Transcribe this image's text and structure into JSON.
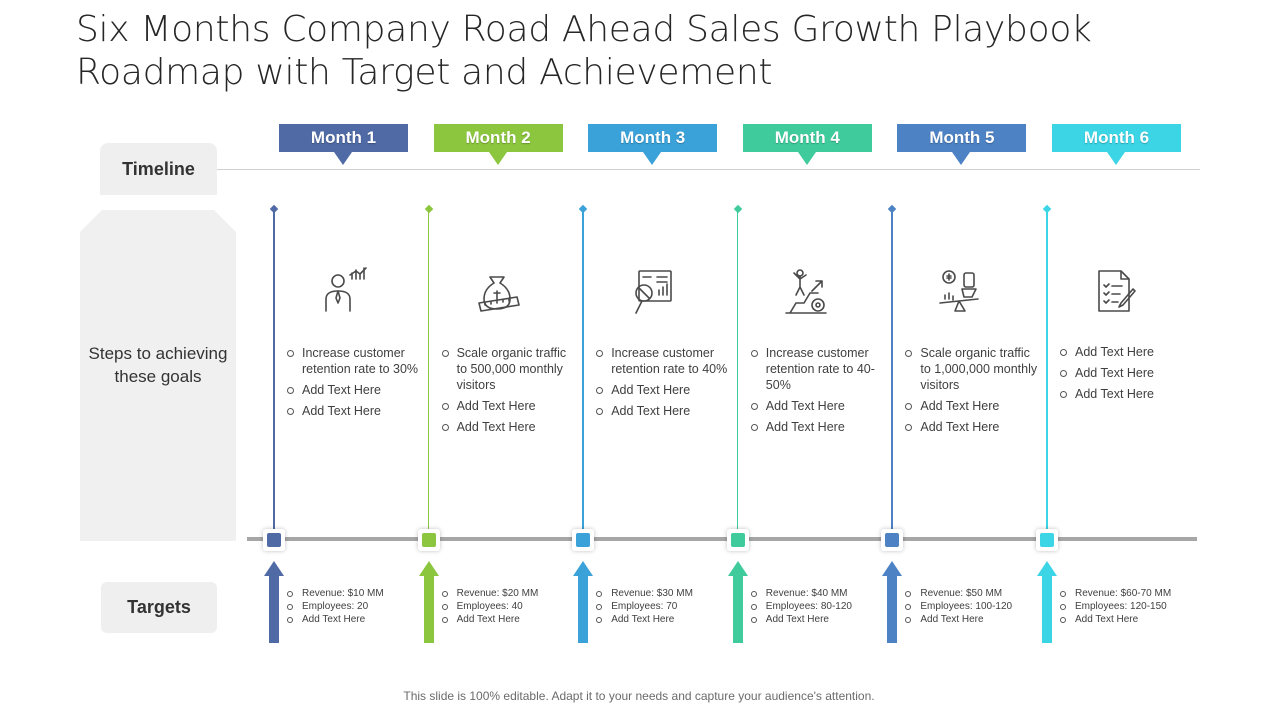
{
  "title": "Six Months Company Road Ahead Sales Growth Playbook Roadmap with Target and Achievement",
  "labels": {
    "timeline": "Timeline",
    "steps": "Steps to achieving these goals",
    "targets": "Targets"
  },
  "months": [
    {
      "label": "Month 1",
      "color": "#4f6aa5",
      "icon": "businessman-growth-chart-icon",
      "steps": [
        "Increase customer retention rate to 30%",
        "Add Text Here",
        "Add Text Here"
      ],
      "targets": [
        "Revenue: $10 MM",
        "Employees: 20",
        "Add Text Here"
      ]
    },
    {
      "label": "Month 2",
      "color": "#8cc63f",
      "icon": "money-bag-scale-icon",
      "steps": [
        "Scale organic traffic to 500,000 monthly visitors",
        "Add Text Here",
        "Add Text Here"
      ],
      "targets": [
        "Revenue: $20 MM",
        "Employees: 40",
        "Add Text Here"
      ]
    },
    {
      "label": "Month 3",
      "color": "#3aa2d9",
      "icon": "analytics-board-magnifier-icon",
      "steps": [
        "Increase customer retention rate to 40%",
        "Add Text Here",
        "Add Text Here"
      ],
      "targets": [
        "Revenue: $30 MM",
        "Employees: 70",
        "Add Text Here"
      ]
    },
    {
      "label": "Month 4",
      "color": "#3fcb9b",
      "icon": "success-stairs-gear-icon",
      "steps": [
        "Increase customer retention rate to 40-50%",
        "Add Text Here",
        "Add Text Here"
      ],
      "targets": [
        "Revenue: $40 MM",
        "Employees: 80-120",
        "Add Text Here"
      ]
    },
    {
      "label": "Month 5",
      "color": "#4d82c4",
      "icon": "hand-balance-dollar-icon",
      "steps": [
        "Scale organic traffic to 1,000,000 monthly visitors",
        "Add Text Here",
        "Add Text Here"
      ],
      "targets": [
        "Revenue: $50 MM",
        "Employees: 100-120",
        "Add Text Here"
      ]
    },
    {
      "label": "Month 6",
      "color": "#3bd5e6",
      "icon": "checklist-document-pen-icon",
      "steps": [
        "Add Text Here",
        "Add Text Here",
        "Add Text Here"
      ],
      "targets": [
        "Revenue: $60-70 MM",
        "Employees: 120-150",
        "Add Text Here"
      ]
    }
  ],
  "footer": "This slide is 100% editable. Adapt it to your needs and capture your audience's attention."
}
